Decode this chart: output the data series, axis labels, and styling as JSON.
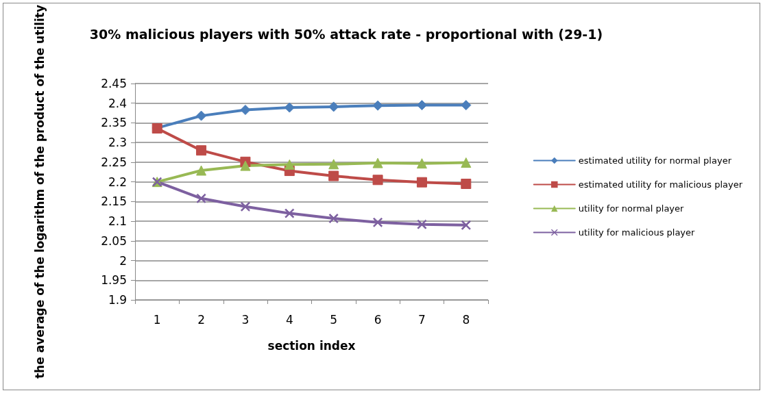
{
  "chart_data": {
    "type": "line",
    "title": "30% malicious players with 50% attack rate - proportional with (29-1)",
    "xlabel": "section index",
    "ylabel": "the average of the logarithm of the product of the utility",
    "categories": [
      "1",
      "2",
      "3",
      "4",
      "5",
      "6",
      "7",
      "8"
    ],
    "series": [
      {
        "name": "estimated utility for normal player",
        "color": "#4a7ebb",
        "marker": "diamond",
        "values": [
          2.337,
          2.368,
          2.383,
          2.389,
          2.391,
          2.394,
          2.395,
          2.395
        ]
      },
      {
        "name": "estimated utility for malicious player",
        "color": "#be4b48",
        "marker": "square",
        "values": [
          2.336,
          2.28,
          2.251,
          2.228,
          2.215,
          2.205,
          2.199,
          2.195
        ]
      },
      {
        "name": "utility for normal player",
        "color": "#98b954",
        "marker": "triangle",
        "values": [
          2.2,
          2.229,
          2.241,
          2.244,
          2.245,
          2.248,
          2.247,
          2.249
        ]
      },
      {
        "name": "utility for malicious player",
        "color": "#7d60a0",
        "marker": "cross",
        "values": [
          2.2,
          2.158,
          2.137,
          2.12,
          2.107,
          2.097,
          2.092,
          2.09
        ]
      }
    ],
    "ylim": [
      1.9,
      2.45
    ],
    "yticks": [
      1.9,
      1.95,
      2,
      2.05,
      2.1,
      2.15,
      2.2,
      2.25,
      2.3,
      2.35,
      2.4,
      2.45
    ],
    "grid": "y",
    "legend": "right",
    "line_style": "solid"
  }
}
